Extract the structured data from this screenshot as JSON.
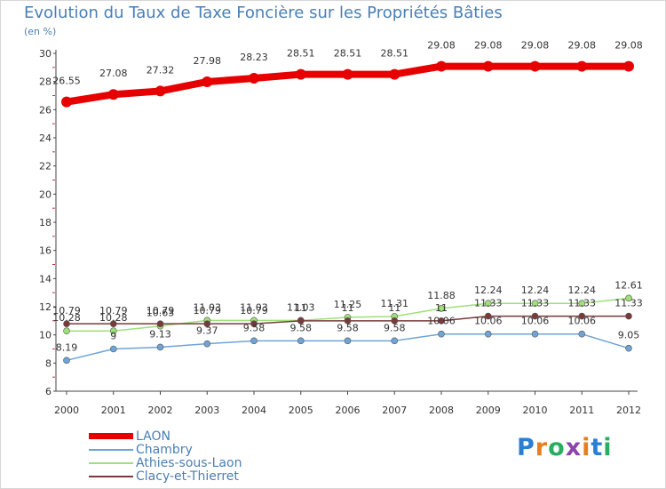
{
  "chart_data": {
    "type": "line",
    "title": "Evolution du Taux de Taxe Foncière sur les Propriétés Bâties",
    "subtitle": "(en %)",
    "xlabel": "",
    "ylabel": "",
    "ylim": [
      6,
      30
    ],
    "yticks": [
      6,
      8,
      10,
      12,
      14,
      16,
      18,
      20,
      22,
      24,
      26,
      28,
      30
    ],
    "grid": false,
    "legend_position": "bottom-left",
    "categories": [
      "2000",
      "2001",
      "2002",
      "2003",
      "2004",
      "2005",
      "2006",
      "2007",
      "2008",
      "2009",
      "2010",
      "2011",
      "2012"
    ],
    "series": [
      {
        "name": "LAON",
        "color": "#e60000",
        "values": [
          26.55,
          27.08,
          27.32,
          27.98,
          28.23,
          28.51,
          28.51,
          28.51,
          29.08,
          29.08,
          29.08,
          29.08,
          29.08
        ],
        "labels": [
          "26.55",
          "27.08",
          "27.32",
          "27.98",
          "28.23",
          "28.51",
          "28.51",
          "28.51",
          "29.08",
          "29.08",
          "29.08",
          "29.08",
          "29.08"
        ]
      },
      {
        "name": "Chambry",
        "color": "#6ea4d6",
        "values": [
          8.19,
          9.0,
          9.13,
          9.37,
          9.58,
          9.58,
          9.58,
          9.58,
          10.06,
          10.06,
          10.06,
          10.06,
          9.05
        ],
        "labels": [
          "8.19",
          "9",
          "9.13",
          "9.37",
          "9.58",
          "9.58",
          "9.58",
          "9.58",
          "10.06",
          "10.06",
          "10.06",
          "10.06",
          "9.05"
        ]
      },
      {
        "name": "Athies-sous-Laon",
        "color": "#9ee07a",
        "values": [
          10.28,
          10.28,
          10.63,
          11.03,
          11.03,
          11.03,
          11.25,
          11.31,
          11.88,
          12.24,
          12.24,
          12.24,
          12.61
        ],
        "labels": [
          "10.28",
          "10.28",
          "10.63",
          "11.03",
          "11.03",
          "11.03",
          "11.25",
          "11.31",
          "11.88",
          "12.24",
          "12.24",
          "12.24",
          "12.61"
        ]
      },
      {
        "name": "Clacy-et-Thierret",
        "color": "#7a3a3a",
        "values": [
          10.79,
          10.79,
          10.79,
          10.79,
          10.79,
          11.0,
          11.0,
          11.0,
          11.0,
          11.33,
          11.33,
          11.33,
          11.33
        ],
        "labels": [
          "10.79",
          "10.79",
          "10.79",
          "10.79",
          "10.79",
          "11",
          "11",
          "11",
          "11",
          "11.33",
          "11.33",
          "11.33",
          "11.33"
        ]
      }
    ]
  },
  "legend": {
    "items": [
      "LAON",
      "Chambry",
      "Athies-sous-Laon",
      "Clacy-et-Thierret"
    ]
  },
  "logo": {
    "letters": [
      "P",
      "r",
      "o",
      "x",
      "i",
      "t",
      "i"
    ],
    "colors": [
      "#2a7fd4",
      "#e67e22",
      "#27ae60",
      "#8e44ad",
      "#e67e22",
      "#2a7fd4",
      "#27ae60"
    ]
  }
}
